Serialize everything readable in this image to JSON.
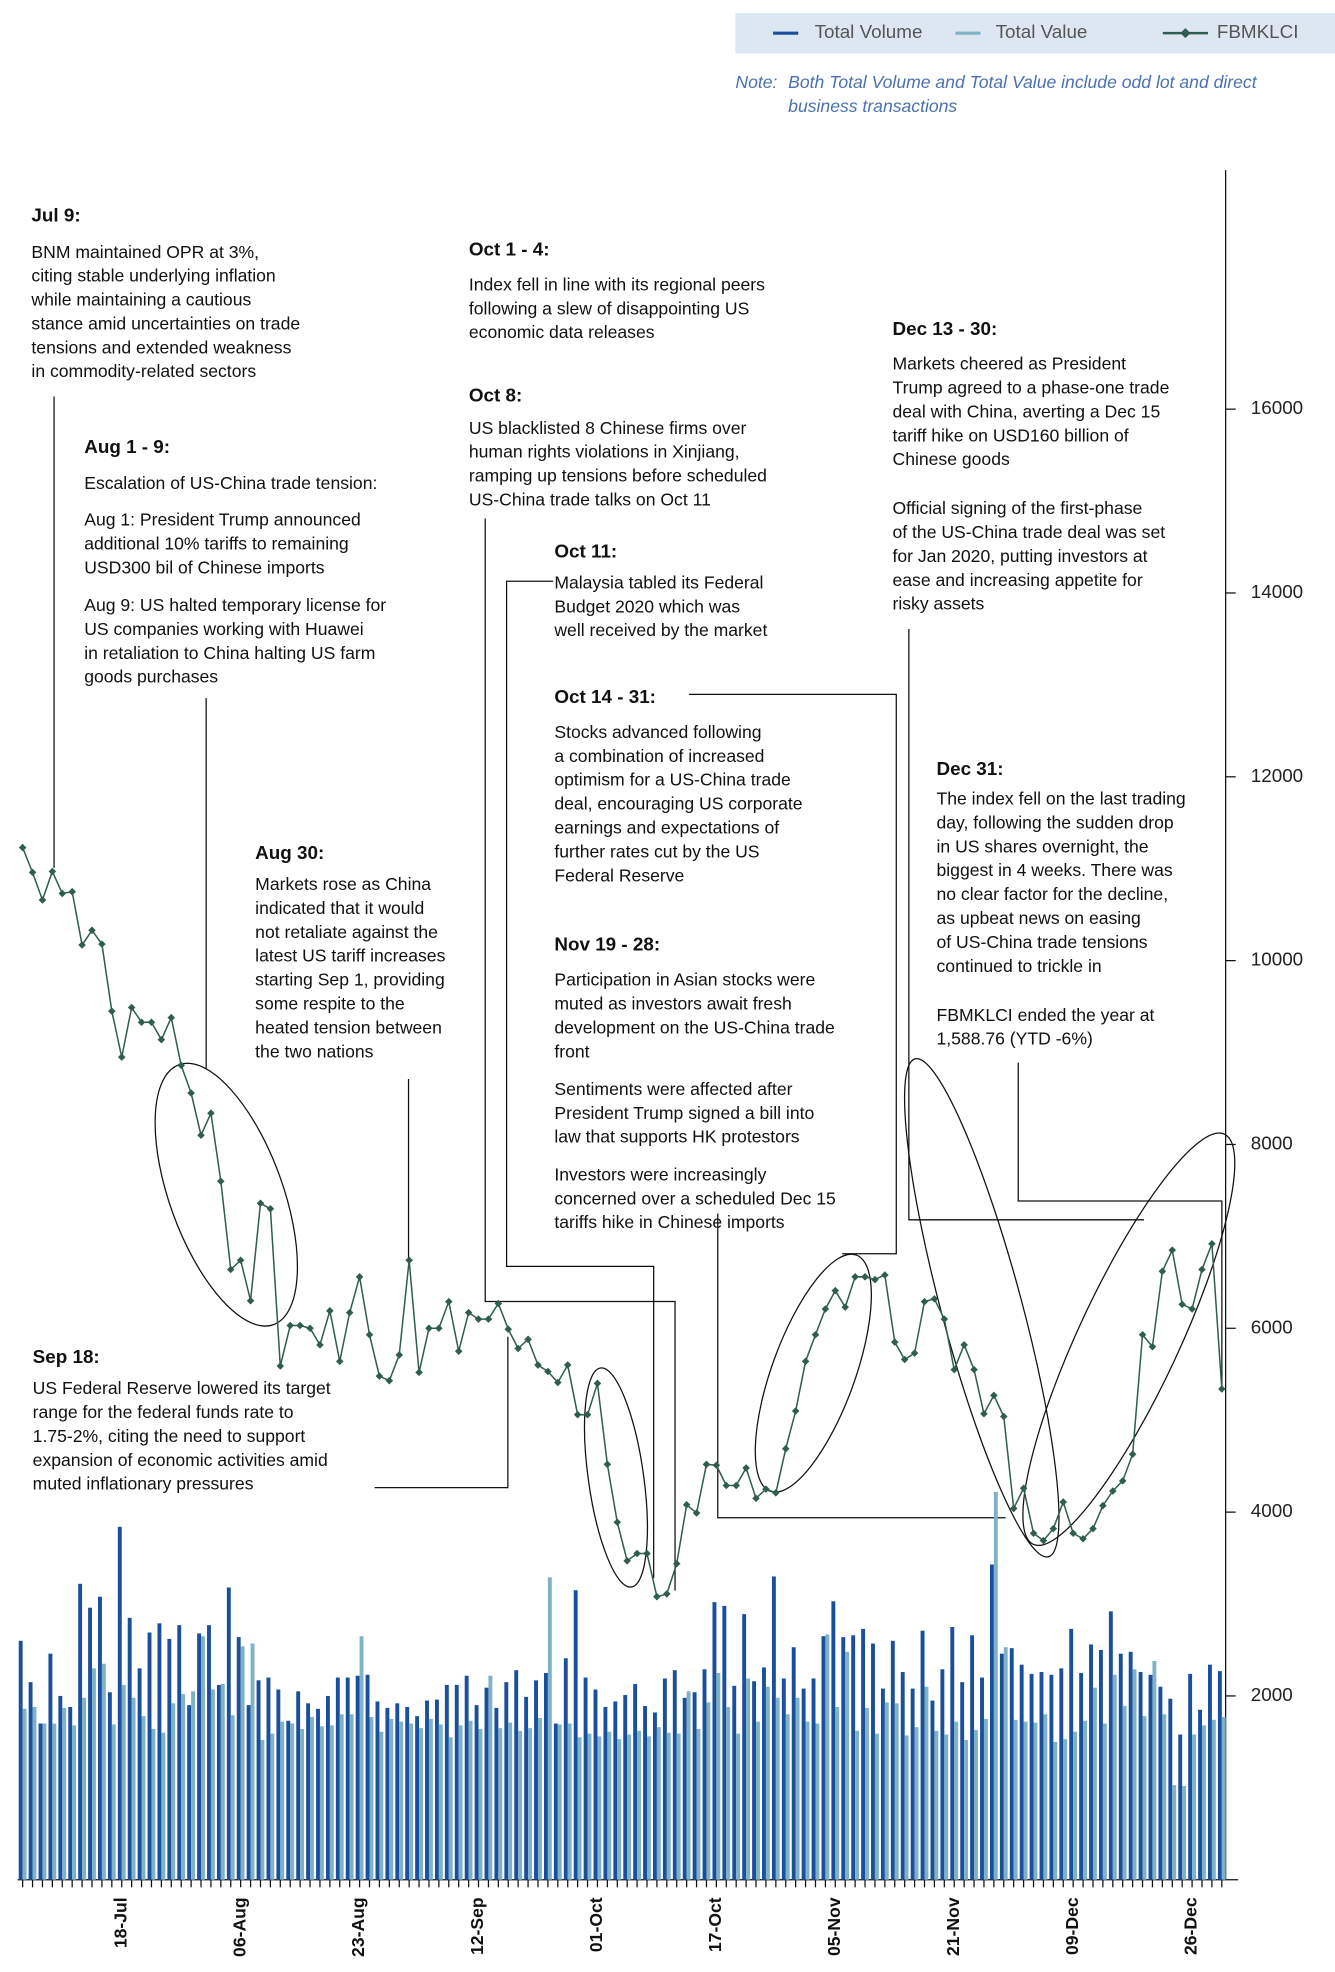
{
  "chart_data": {
    "type": "combo",
    "note": {
      "label": "Note:",
      "lines": [
        "Both Total Volume and Total Value include odd lot and direct",
        "business transactions"
      ]
    },
    "categories": [
      null,
      null,
      null,
      null,
      null,
      null,
      null,
      null,
      null,
      null,
      "18-Jul",
      null,
      null,
      null,
      null,
      null,
      null,
      null,
      null,
      null,
      null,
      null,
      "06-Aug",
      null,
      null,
      null,
      null,
      null,
      null,
      null,
      null,
      null,
      null,
      null,
      "23-Aug",
      null,
      null,
      null,
      null,
      null,
      null,
      null,
      null,
      null,
      null,
      null,
      "12-Sep",
      null,
      null,
      null,
      null,
      null,
      null,
      null,
      null,
      null,
      null,
      null,
      "01-Oct",
      null,
      null,
      null,
      null,
      null,
      null,
      null,
      null,
      null,
      null,
      null,
      "17-Oct",
      null,
      null,
      null,
      null,
      null,
      null,
      null,
      null,
      null,
      null,
      null,
      "05-Nov",
      null,
      null,
      null,
      null,
      null,
      null,
      null,
      null,
      null,
      null,
      null,
      "21-Nov",
      null,
      null,
      null,
      null,
      null,
      null,
      null,
      null,
      null,
      null,
      null,
      "09-Dec",
      null,
      null,
      null,
      null,
      null,
      null,
      null,
      null,
      null,
      null,
      null,
      "26-Dec",
      null,
      null,
      null
    ],
    "series": [
      {
        "name": "Total Volume",
        "type": "bar",
        "color": "#1a4f9c",
        "values": [
          2600,
          2150,
          1700,
          2460,
          2000,
          1880,
          3220,
          2960,
          3080,
          2040,
          3840,
          2850,
          2300,
          2690,
          2790,
          2620,
          2770,
          1900,
          2680,
          2770,
          2120,
          3180,
          2640,
          1900,
          2170,
          2200,
          2070,
          1730,
          2050,
          1920,
          1860,
          2000,
          2200,
          2200,
          2220,
          2230,
          1940,
          1870,
          1920,
          1880,
          1780,
          1950,
          1960,
          2120,
          2120,
          2220,
          1900,
          2090,
          1870,
          2150,
          2280,
          1990,
          2170,
          2250,
          1700,
          2410,
          3150,
          2200,
          2070,
          1880,
          1940,
          2010,
          2130,
          1890,
          1820,
          2190,
          2280,
          1980,
          2040,
          2290,
          3020,
          2980,
          2110,
          2890,
          2160,
          2310,
          3300,
          2190,
          2530,
          2080,
          2190,
          2650,
          3030,
          2640,
          2660,
          2730,
          2570,
          2080,
          2600,
          2260,
          2080,
          2710,
          1950,
          2290,
          2750,
          2150,
          2660,
          2200,
          3430,
          2460,
          2520,
          2340,
          2240,
          2260,
          2230,
          2300,
          2730,
          2250,
          2560,
          2500,
          2920,
          2460,
          2480,
          2260,
          2230,
          2100,
          1970,
          1580,
          2240,
          1850,
          2340,
          2270
        ]
      },
      {
        "name": "Total Value",
        "type": "bar",
        "color": "#7fb2c6",
        "values": [
          1860,
          1880,
          1700,
          1700,
          1870,
          1680,
          1980,
          2300,
          2350,
          1690,
          2120,
          1980,
          1780,
          1640,
          1600,
          1920,
          2020,
          2050,
          2650,
          2070,
          2130,
          1790,
          2540,
          2570,
          1520,
          1590,
          1720,
          1700,
          1640,
          1770,
          1670,
          1680,
          1800,
          1800,
          2650,
          1770,
          1610,
          1750,
          1720,
          1700,
          1650,
          1750,
          1690,
          1550,
          1680,
          1730,
          1640,
          2220,
          1650,
          1710,
          1620,
          1650,
          1760,
          3290,
          1690,
          1700,
          1550,
          1590,
          1560,
          1610,
          1530,
          1580,
          1620,
          1560,
          1660,
          1600,
          1590,
          2050,
          1640,
          1930,
          2250,
          1880,
          1590,
          2190,
          1720,
          2100,
          1980,
          1800,
          1980,
          1720,
          1700,
          2670,
          1880,
          2480,
          1620,
          1870,
          1590,
          1930,
          1920,
          1570,
          1660,
          2100,
          1620,
          1580,
          1720,
          1520,
          1630,
          1750,
          4220,
          2530,
          1740,
          1720,
          1710,
          1800,
          1500,
          1530,
          1610,
          1730,
          2090,
          1700,
          2230,
          1890,
          2290,
          1780,
          2380,
          1800,
          1030,
          1020,
          1580,
          1680,
          1740,
          1770
        ]
      },
      {
        "name": "FBMKLCI",
        "type": "line",
        "color": "#2f5d50",
        "values": [
          11230,
          10960,
          10660,
          10970,
          10730,
          10750,
          10170,
          10330,
          10180,
          9450,
          8950,
          9490,
          9330,
          9330,
          9140,
          9380,
          8860,
          8560,
          8100,
          8340,
          7600,
          6640,
          6740,
          6300,
          7360,
          7300,
          5590,
          6030,
          6030,
          6000,
          5820,
          6190,
          5640,
          6170,
          6560,
          5930,
          5480,
          5430,
          5710,
          6740,
          5520,
          6000,
          6000,
          6290,
          5750,
          6170,
          6100,
          6100,
          6270,
          5990,
          5780,
          5880,
          5600,
          5530,
          5410,
          5600,
          5060,
          5060,
          5400,
          4520,
          3890,
          3470,
          3550,
          3550,
          3080,
          3110,
          3440,
          4080,
          3990,
          4520,
          4510,
          4290,
          4290,
          4480,
          4150,
          4250,
          4210,
          4690,
          5100,
          5640,
          5930,
          6210,
          6410,
          6230,
          6560,
          6560,
          6530,
          6580,
          5850,
          5660,
          5730,
          6290,
          6320,
          6100,
          5550,
          5820,
          5550,
          5070,
          5270,
          5040,
          4040,
          4260,
          3770,
          3690,
          3820,
          4110,
          3770,
          3710,
          3820,
          4070,
          4230,
          4340,
          4630,
          5930,
          5800,
          6620,
          6850,
          6260,
          6210,
          6640,
          6920,
          5340
        ]
      }
    ],
    "ylim": [
      0,
      18600
    ],
    "yticks": [
      2000,
      4000,
      6000,
      8000,
      10000,
      12000,
      14000,
      16000
    ],
    "legend": "top-right",
    "annotations": [
      {
        "title": "Jul 9:",
        "paragraphs": [
          [
            "BNM maintained OPR at 3%,",
            "citing stable underlying inflation",
            "while maintaining a cautious",
            "stance amid uncertainties on trade",
            "tensions and extended weakness",
            "in commodity-related sectors"
          ]
        ]
      },
      {
        "title": "Aug 1 - 9:",
        "paragraphs": [
          [
            "Escalation of US-China trade tension:"
          ],
          [
            "Aug 1: President Trump announced",
            "additional 10% tariffs to remaining",
            "USD300 bil of Chinese imports"
          ],
          [
            "Aug 9: US halted temporary license for",
            "US companies working with Huawei",
            "in retaliation to China halting US farm",
            "goods purchases"
          ]
        ]
      },
      {
        "title": "Aug 30:",
        "paragraphs": [
          [
            "Markets rose as China",
            "indicated that it would",
            "not retaliate against the",
            "latest US tariff increases",
            "starting Sep 1, providing",
            "some respite to the",
            "heated tension between",
            "the two nations"
          ]
        ]
      },
      {
        "title": "Sep 18:",
        "paragraphs": [
          [
            "US Federal Reserve lowered its target",
            "range for the federal funds rate to",
            "1.75-2%, citing the need to support",
            "expansion of economic activities amid",
            "muted inflationary pressures"
          ]
        ]
      },
      {
        "title": "Oct 1 - 4:",
        "paragraphs": [
          [
            "Index fell in line with its regional peers",
            "following a slew of disappointing US",
            "economic data releases"
          ]
        ]
      },
      {
        "title": "Oct 8:",
        "paragraphs": [
          [
            "US blacklisted 8 Chinese firms over",
            "human rights violations in Xinjiang,",
            "ramping up tensions before scheduled",
            "US-China trade talks on Oct 11"
          ]
        ]
      },
      {
        "title": "Oct 11:",
        "paragraphs": [
          [
            "Malaysia tabled its Federal",
            "Budget 2020 which was",
            "well received by the market"
          ]
        ]
      },
      {
        "title": "Oct 14 - 31:",
        "paragraphs": [
          [
            "Stocks advanced following",
            "a combination of increased",
            "optimism for a US-China trade",
            "deal, encouraging US corporate",
            "earnings and expectations of",
            "further rates cut by the US",
            "Federal Reserve"
          ]
        ]
      },
      {
        "title": "Nov 19 - 28:",
        "paragraphs": [
          [
            "Participation in Asian stocks were",
            "muted as investors await fresh",
            "development on the US-China trade",
            "front"
          ],
          [
            "Sentiments were affected after",
            "President Trump signed a bill into",
            "law that supports HK protestors"
          ],
          [
            "Investors were increasingly",
            "concerned over a scheduled Dec 15",
            "tariffs hike in Chinese imports"
          ]
        ]
      },
      {
        "title": "Dec 13 - 30:",
        "paragraphs": [
          [
            "Markets cheered as President",
            "Trump agreed to a phase-one trade",
            "deal with China, averting a Dec 15",
            "tariff hike on USD160 billion of",
            "Chinese goods"
          ],
          [
            "Official signing of the first-phase",
            "of the US-China trade deal was set",
            "for Jan 2020, putting investors at",
            "ease and increasing appetite for",
            "risky assets"
          ]
        ]
      },
      {
        "title": "Dec 31:",
        "paragraphs": [
          [
            "The index fell on the last trading",
            "day, following the sudden drop",
            "in US shares overnight, the",
            "biggest in 4 weeks. There was",
            "no clear factor for the decline,",
            "as upbeat news on easing",
            "of US-China trade tensions",
            "continued to trickle in"
          ],
          [
            "FBMKLCI ended the year at",
            "1,588.76 (YTD -6%)"
          ]
        ]
      }
    ]
  }
}
